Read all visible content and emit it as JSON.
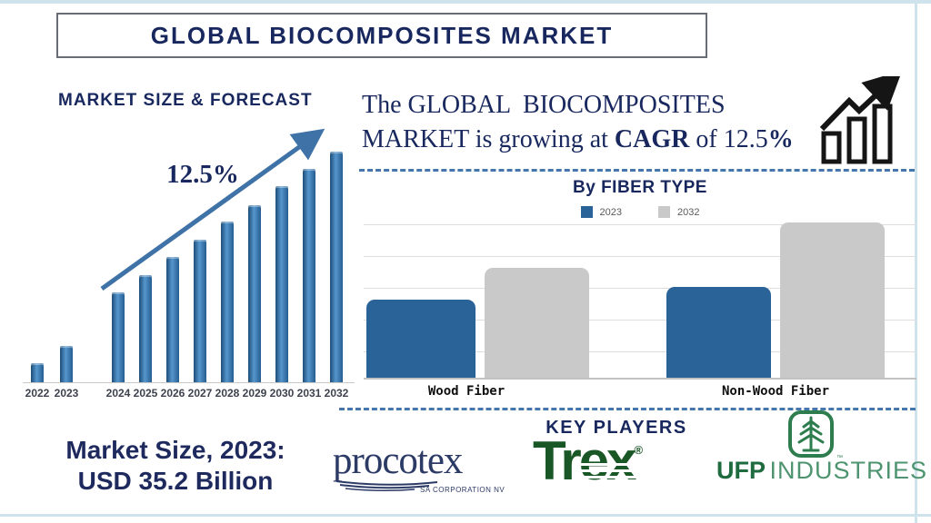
{
  "page": {
    "title": "GLOBAL BIOCOMPOSITES MARKET"
  },
  "forecast": {
    "heading": "MARKET SIZE & FORECAST",
    "cagr_annotation": "12.5%"
  },
  "growth_statement": {
    "line1": "The GLOBAL  BIOCOMPOSITES",
    "line2_pre": "MARKET is growing at ",
    "line2_bold": "CAGR",
    "line2_mid": " of 12.5",
    "line2_pct": "%"
  },
  "fiber": {
    "title": "By FIBER TYPE"
  },
  "market_size": {
    "line1": "Market Size, 2023:",
    "line2": "USD 35.2 Billion"
  },
  "key_players": {
    "heading": "KEY PLAYERS",
    "players": [
      {
        "name": "Procotex",
        "text": "procotex",
        "subtext": "SA CORPORATION NV"
      },
      {
        "name": "Trex",
        "text": "Trex",
        "mark": "®"
      },
      {
        "name": "UFP Industries",
        "text_bold": "UFP",
        "text_light": "INDUSTRIES",
        "mark": "™"
      }
    ]
  },
  "colors": {
    "navy": "#18285e",
    "steel_blue_arrow": "#3f72a6",
    "bar_blue": "#2a6397",
    "bar_gray": "#c9c9c9",
    "frame_light_blue": "#cfe3ed",
    "dashed_divider_blue": "#4577ad",
    "trex_green": "#195726",
    "ufp_green_dark": "#1e6b3f",
    "ufp_green_light": "#4f9470",
    "procotex_navy": "#2c3a66"
  },
  "chart_data": [
    {
      "type": "bar",
      "title": "MARKET SIZE & FORECAST",
      "categories": [
        "2022",
        "2023",
        "2024",
        "2025",
        "2026",
        "2027",
        "2028",
        "2029",
        "2030",
        "2031",
        "2032"
      ],
      "values": [
        21,
        40,
        99,
        118,
        138,
        157,
        177,
        195,
        216,
        235,
        254
      ],
      "value_scale": "relative bar heights in px; no value axis shown",
      "annotation": "12.5% CAGR with upward trend arrow",
      "bar_color": "#2a6397",
      "xlabel": "",
      "ylabel": "",
      "grid": false
    },
    {
      "type": "bar",
      "title": "By FIBER TYPE",
      "categories": [
        "Wood Fiber",
        "Non-Wood Fiber"
      ],
      "series": [
        {
          "name": "2023",
          "color": "#2a6397",
          "values": [
            86,
            100
          ]
        },
        {
          "name": "2032",
          "color": "#c9c9c9",
          "values": [
            121,
            171
          ]
        }
      ],
      "value_scale": "relative bar heights in px; no value axis shown",
      "legend_position": "top",
      "xlabel": "",
      "ylabel": "",
      "grid": true
    }
  ]
}
